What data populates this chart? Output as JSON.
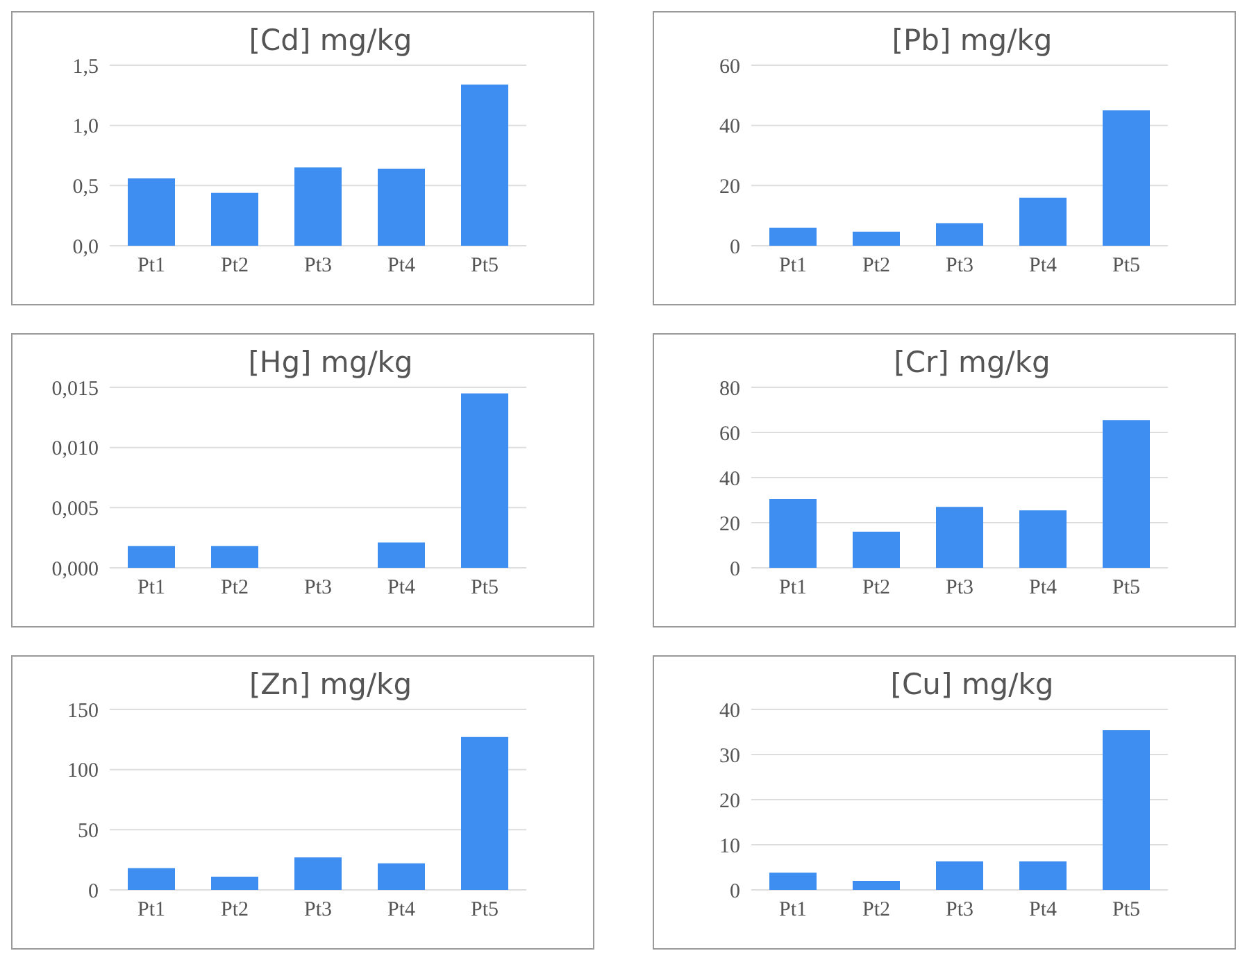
{
  "chart_data": [
    {
      "type": "bar",
      "title": "[Cd] mg/kg",
      "categories": [
        "Pt1",
        "Pt2",
        "Pt3",
        "Pt4",
        "Pt5"
      ],
      "values": [
        0.56,
        0.44,
        0.65,
        0.64,
        1.34
      ],
      "color": "#3d8ef0",
      "ylim": [
        0,
        1.5
      ],
      "yticks": [
        {
          "value": 0,
          "label": "0,0"
        },
        {
          "value": 0.5,
          "label": "0,5"
        },
        {
          "value": 1.0,
          "label": "1,0"
        },
        {
          "value": 1.5,
          "label": "1,5"
        }
      ],
      "grid": "y"
    },
    {
      "type": "bar",
      "title": "[Pb] mg/kg",
      "categories": [
        "Pt1",
        "Pt2",
        "Pt3",
        "Pt4",
        "Pt5"
      ],
      "values": [
        6,
        4.7,
        7.5,
        16,
        45
      ],
      "color": "#3d8ef0",
      "ylim": [
        0,
        60
      ],
      "yticks": [
        0,
        20,
        40,
        60
      ],
      "grid": "y"
    },
    {
      "type": "bar",
      "title": "[Hg] mg/kg",
      "categories": [
        "Pt1",
        "Pt2",
        "Pt3",
        "Pt4",
        "Pt5"
      ],
      "values": [
        0.0018,
        0.0018,
        0,
        0.0021,
        0.0145
      ],
      "color": "#3d8ef0",
      "ylim": [
        0,
        0.015
      ],
      "yticks": [
        {
          "value": 0,
          "label": "0,000"
        },
        {
          "value": 0.005,
          "label": "0,005"
        },
        {
          "value": 0.01,
          "label": "0,010"
        },
        {
          "value": 0.015,
          "label": "0,015"
        }
      ],
      "grid": "y"
    },
    {
      "type": "bar",
      "title": "[Cr] mg/kg",
      "categories": [
        "Pt1",
        "Pt2",
        "Pt3",
        "Pt4",
        "Pt5"
      ],
      "values": [
        30.5,
        16,
        27,
        25.5,
        65.5
      ],
      "color": "#3d8ef0",
      "ylim": [
        0,
        80
      ],
      "yticks": [
        0,
        20,
        40,
        60,
        80
      ],
      "grid": "y"
    },
    {
      "type": "bar",
      "title": "[Zn] mg/kg",
      "categories": [
        "Pt1",
        "Pt2",
        "Pt3",
        "Pt4",
        "Pt5"
      ],
      "values": [
        18,
        11,
        27,
        22,
        127
      ],
      "color": "#3d8ef0",
      "ylim": [
        0,
        150
      ],
      "yticks": [
        0,
        50,
        100,
        150
      ],
      "grid": "y"
    },
    {
      "type": "bar",
      "title": "[Cu] mg/kg",
      "categories": [
        "Pt1",
        "Pt2",
        "Pt3",
        "Pt4",
        "Pt5"
      ],
      "values": [
        3.8,
        2,
        6.3,
        6.3,
        35.4
      ],
      "color": "#3d8ef0",
      "ylim": [
        0,
        40
      ],
      "yticks": [
        0,
        10,
        20,
        30,
        40
      ],
      "grid": "y"
    }
  ]
}
